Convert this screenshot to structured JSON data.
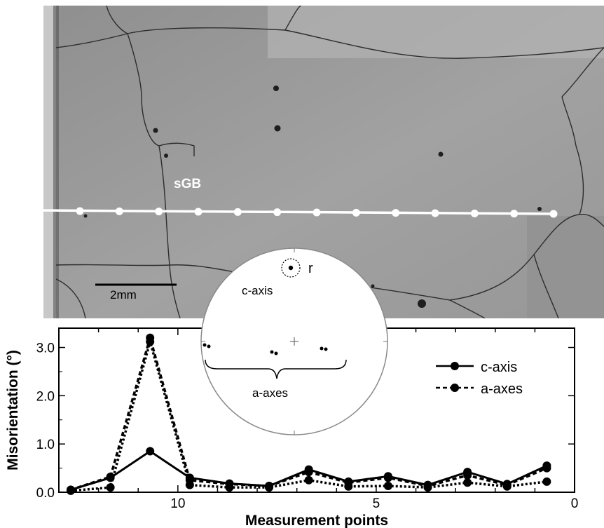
{
  "micrograph": {
    "label_sgb": "sGB",
    "scale_bar_label": "2mm",
    "line_points_count": 13
  },
  "pole_figure": {
    "c_axis_label": "c-axis",
    "r_label": "r",
    "a_axes_label": "a-axes"
  },
  "chart_data": {
    "type": "line",
    "xlabel": "Measurement points",
    "ylabel": "Misorientation (°)",
    "xlim": [
      0,
      13
    ],
    "ylim": [
      0,
      3.4
    ],
    "x_ticks": [
      10,
      5,
      0
    ],
    "x_tick_labels": [
      "10",
      "5",
      "0"
    ],
    "x_inverted": true,
    "y_ticks": [
      0,
      1,
      2,
      3
    ],
    "y_tick_labels": [
      "0.0",
      "1.0",
      "2.0",
      "3.0"
    ],
    "legend_position": "top-right",
    "x": [
      12.7,
      11.7,
      10.7,
      9.7,
      8.7,
      7.7,
      6.7,
      5.7,
      4.7,
      3.7,
      2.7,
      1.7,
      0.7
    ],
    "series": [
      {
        "name": "c-axis",
        "line": "solid",
        "values": [
          0.05,
          0.3,
          0.85,
          0.3,
          0.18,
          0.13,
          0.47,
          0.22,
          0.33,
          0.15,
          0.42,
          0.17,
          0.55
        ]
      },
      {
        "name": "a-axes",
        "line": "dashed",
        "values": [
          0.05,
          0.32,
          3.2,
          0.25,
          0.17,
          0.13,
          0.42,
          0.2,
          0.3,
          0.13,
          0.35,
          0.15,
          0.5
        ]
      },
      {
        "name": "",
        "line": "dashed",
        "values": [
          0.03,
          0.1,
          3.12,
          0.15,
          0.1,
          0.1,
          0.25,
          0.12,
          0.13,
          0.1,
          0.2,
          0.12,
          0.22
        ]
      }
    ]
  }
}
